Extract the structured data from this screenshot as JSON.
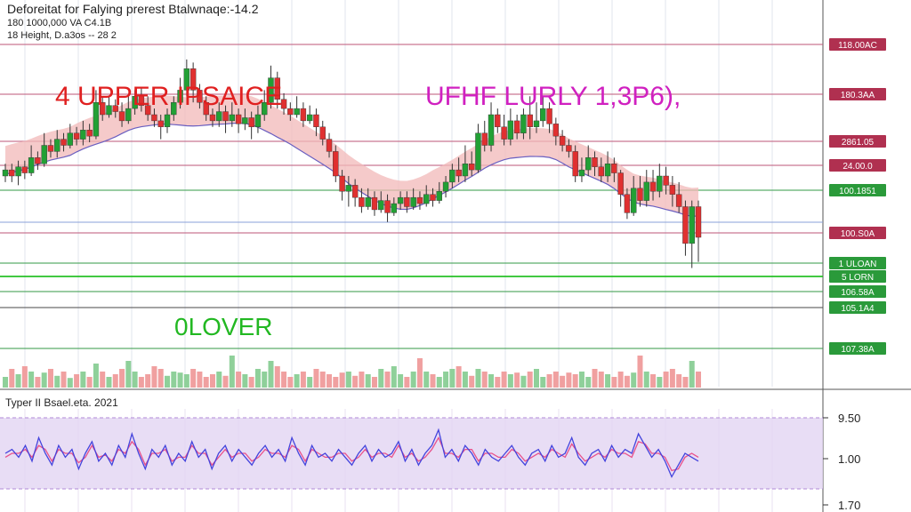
{
  "header": {
    "line1": "Deforeitat for Falying prerest Btalwnaqe:-14.2",
    "line2": "180 1000,000 VA C4.1B",
    "line3": "18 Height, D.a3os -- 28 2"
  },
  "annotations": {
    "upper": "4 UPPER IPSAICE",
    "lurly": "UFHF LURLY 1,3P6),",
    "olover": "0LOVER"
  },
  "oscillator": {
    "title": "Typer II Bsael.eta. 2021",
    "ticks": [
      "9.50",
      "1.00",
      "1.70"
    ]
  },
  "colors": {
    "up": "#22a035",
    "down": "#e03030",
    "band_fill": "#f2b8b8",
    "band_line": "#6a5fc0",
    "osc_bg": "#e2d4f2",
    "osc_line_blue": "#4444dd",
    "osc_line_pink": "#e8508a"
  },
  "chart_data": {
    "type": "candlestick",
    "price_labels": [
      {
        "text": "118.00AC",
        "color": "#b03050"
      },
      {
        "text": "180.3AA",
        "color": "#b03050"
      },
      {
        "text": "2861.05",
        "color": "#b03050"
      },
      {
        "text": "24.00.0",
        "color": "#b03050"
      },
      {
        "text": "100.1851",
        "color": "#2a9a3a"
      },
      {
        "text": "100.S0A",
        "color": "#b03050"
      },
      {
        "text": "1 ULOAN",
        "color": "#2a9a3a"
      },
      {
        "text": "5 LORN",
        "color": "#2a9a3a"
      },
      {
        "text": "106.58A",
        "color": "#2a9a3a"
      },
      {
        "text": "105.1A4",
        "color": "#2a9a3a"
      },
      {
        "text": "107.38A",
        "color": "#2a9a3a"
      }
    ],
    "candles": [
      [
        0.6,
        0.62,
        0.58,
        0.64
      ],
      [
        0.62,
        0.6,
        0.58,
        0.64
      ],
      [
        0.6,
        0.63,
        0.57,
        0.65
      ],
      [
        0.63,
        0.61,
        0.59,
        0.65
      ],
      [
        0.61,
        0.66,
        0.6,
        0.7
      ],
      [
        0.66,
        0.64,
        0.62,
        0.68
      ],
      [
        0.64,
        0.7,
        0.63,
        0.74
      ],
      [
        0.7,
        0.68,
        0.66,
        0.72
      ],
      [
        0.68,
        0.72,
        0.66,
        0.75
      ],
      [
        0.72,
        0.7,
        0.68,
        0.74
      ],
      [
        0.7,
        0.74,
        0.69,
        0.77
      ],
      [
        0.74,
        0.72,
        0.7,
        0.76
      ],
      [
        0.72,
        0.75,
        0.7,
        0.78
      ],
      [
        0.75,
        0.73,
        0.71,
        0.77
      ],
      [
        0.73,
        0.84,
        0.72,
        0.88
      ],
      [
        0.84,
        0.8,
        0.78,
        0.86
      ],
      [
        0.8,
        0.83,
        0.79,
        0.86
      ],
      [
        0.83,
        0.81,
        0.79,
        0.85
      ],
      [
        0.81,
        0.78,
        0.76,
        0.84
      ],
      [
        0.78,
        0.82,
        0.77,
        0.86
      ],
      [
        0.82,
        0.86,
        0.8,
        0.88
      ],
      [
        0.86,
        0.83,
        0.81,
        0.89
      ],
      [
        0.83,
        0.8,
        0.78,
        0.86
      ],
      [
        0.8,
        0.78,
        0.76,
        0.82
      ],
      [
        0.78,
        0.76,
        0.72,
        0.8
      ],
      [
        0.76,
        0.8,
        0.74,
        0.82
      ],
      [
        0.8,
        0.84,
        0.78,
        0.86
      ],
      [
        0.84,
        0.88,
        0.82,
        0.92
      ],
      [
        0.88,
        0.95,
        0.86,
        0.98
      ],
      [
        0.95,
        0.88,
        0.84,
        0.97
      ],
      [
        0.88,
        0.84,
        0.82,
        0.9
      ],
      [
        0.84,
        0.8,
        0.78,
        0.86
      ],
      [
        0.8,
        0.78,
        0.76,
        0.82
      ],
      [
        0.78,
        0.81,
        0.76,
        0.84
      ],
      [
        0.81,
        0.78,
        0.74,
        0.83
      ],
      [
        0.78,
        0.8,
        0.76,
        0.84
      ],
      [
        0.8,
        0.77,
        0.74,
        0.82
      ],
      [
        0.77,
        0.79,
        0.75,
        0.82
      ],
      [
        0.79,
        0.76,
        0.72,
        0.81
      ],
      [
        0.76,
        0.8,
        0.74,
        0.83
      ],
      [
        0.8,
        0.84,
        0.78,
        0.88
      ],
      [
        0.84,
        0.92,
        0.82,
        0.96
      ],
      [
        0.92,
        0.85,
        0.82,
        0.94
      ],
      [
        0.85,
        0.82,
        0.8,
        0.87
      ],
      [
        0.82,
        0.8,
        0.78,
        0.84
      ],
      [
        0.8,
        0.82,
        0.79,
        0.86
      ],
      [
        0.82,
        0.78,
        0.76,
        0.84
      ],
      [
        0.78,
        0.8,
        0.77,
        0.83
      ],
      [
        0.8,
        0.76,
        0.73,
        0.82
      ],
      [
        0.76,
        0.72,
        0.7,
        0.78
      ],
      [
        0.72,
        0.68,
        0.66,
        0.74
      ],
      [
        0.68,
        0.6,
        0.58,
        0.7
      ],
      [
        0.6,
        0.55,
        0.52,
        0.62
      ],
      [
        0.55,
        0.57,
        0.5,
        0.6
      ],
      [
        0.57,
        0.53,
        0.5,
        0.59
      ],
      [
        0.53,
        0.5,
        0.48,
        0.56
      ],
      [
        0.5,
        0.53,
        0.49,
        0.56
      ],
      [
        0.53,
        0.49,
        0.47,
        0.55
      ],
      [
        0.49,
        0.52,
        0.48,
        0.55
      ],
      [
        0.52,
        0.48,
        0.45,
        0.54
      ],
      [
        0.48,
        0.51,
        0.47,
        0.53
      ],
      [
        0.51,
        0.53,
        0.49,
        0.55
      ],
      [
        0.53,
        0.5,
        0.48,
        0.55
      ],
      [
        0.5,
        0.53,
        0.49,
        0.56
      ],
      [
        0.53,
        0.51,
        0.49,
        0.55
      ],
      [
        0.51,
        0.54,
        0.5,
        0.57
      ],
      [
        0.54,
        0.52,
        0.5,
        0.56
      ],
      [
        0.52,
        0.55,
        0.51,
        0.58
      ],
      [
        0.55,
        0.58,
        0.53,
        0.6
      ],
      [
        0.58,
        0.62,
        0.56,
        0.64
      ],
      [
        0.62,
        0.6,
        0.58,
        0.66
      ],
      [
        0.6,
        0.64,
        0.58,
        0.7
      ],
      [
        0.64,
        0.62,
        0.6,
        0.68
      ],
      [
        0.62,
        0.74,
        0.61,
        0.77
      ],
      [
        0.74,
        0.7,
        0.68,
        0.78
      ],
      [
        0.7,
        0.8,
        0.68,
        0.84
      ],
      [
        0.8,
        0.76,
        0.74,
        0.82
      ],
      [
        0.76,
        0.72,
        0.7,
        0.8
      ],
      [
        0.72,
        0.78,
        0.7,
        0.82
      ],
      [
        0.78,
        0.74,
        0.72,
        0.8
      ],
      [
        0.74,
        0.8,
        0.72,
        0.82
      ],
      [
        0.8,
        0.76,
        0.72,
        0.86
      ],
      [
        0.76,
        0.78,
        0.74,
        0.84
      ],
      [
        0.78,
        0.82,
        0.76,
        0.86
      ],
      [
        0.82,
        0.77,
        0.74,
        0.84
      ],
      [
        0.77,
        0.73,
        0.7,
        0.79
      ],
      [
        0.73,
        0.7,
        0.68,
        0.75
      ],
      [
        0.7,
        0.68,
        0.66,
        0.72
      ],
      [
        0.68,
        0.6,
        0.58,
        0.7
      ],
      [
        0.6,
        0.62,
        0.58,
        0.66
      ],
      [
        0.62,
        0.66,
        0.6,
        0.7
      ],
      [
        0.66,
        0.63,
        0.6,
        0.68
      ],
      [
        0.63,
        0.6,
        0.58,
        0.66
      ],
      [
        0.6,
        0.64,
        0.58,
        0.68
      ],
      [
        0.64,
        0.61,
        0.58,
        0.66
      ],
      [
        0.61,
        0.54,
        0.5,
        0.62
      ],
      [
        0.54,
        0.48,
        0.46,
        0.56
      ],
      [
        0.48,
        0.56,
        0.47,
        0.6
      ],
      [
        0.56,
        0.52,
        0.5,
        0.6
      ],
      [
        0.52,
        0.58,
        0.5,
        0.62
      ],
      [
        0.58,
        0.55,
        0.52,
        0.62
      ],
      [
        0.55,
        0.6,
        0.53,
        0.64
      ],
      [
        0.6,
        0.57,
        0.54,
        0.63
      ],
      [
        0.57,
        0.54,
        0.5,
        0.6
      ],
      [
        0.54,
        0.5,
        0.48,
        0.58
      ],
      [
        0.5,
        0.38,
        0.34,
        0.52
      ],
      [
        0.38,
        0.5,
        0.3,
        0.52
      ],
      [
        0.5,
        0.4,
        0.32,
        0.52
      ]
    ],
    "volume": [
      0.2,
      0.35,
      0.25,
      0.4,
      0.3,
      0.2,
      0.28,
      0.35,
      0.22,
      0.3,
      0.18,
      0.25,
      0.3,
      0.2,
      0.45,
      0.3,
      0.2,
      0.25,
      0.35,
      0.5,
      0.3,
      0.2,
      0.25,
      0.4,
      0.35,
      0.22,
      0.3,
      0.28,
      0.25,
      0.35,
      0.3,
      0.2,
      0.25,
      0.3,
      0.22,
      0.6,
      0.3,
      0.25,
      0.2,
      0.35,
      0.3,
      0.5,
      0.4,
      0.3,
      0.2,
      0.25,
      0.3,
      0.2,
      0.35,
      0.3,
      0.25,
      0.2,
      0.28,
      0.3,
      0.22,
      0.3,
      0.25,
      0.2,
      0.35,
      0.3,
      0.4,
      0.25,
      0.2,
      0.3,
      0.55,
      0.3,
      0.25,
      0.2,
      0.3,
      0.35,
      0.4,
      0.3,
      0.22,
      0.35,
      0.3,
      0.25,
      0.2,
      0.3,
      0.25,
      0.28,
      0.22,
      0.3,
      0.35,
      0.2,
      0.25,
      0.3,
      0.22,
      0.28,
      0.25,
      0.3,
      0.2,
      0.35,
      0.3,
      0.25,
      0.2,
      0.3,
      0.22,
      0.28,
      0.6,
      0.3,
      0.25,
      0.2,
      0.3,
      0.35,
      0.25,
      0.2,
      0.5,
      0.3,
      0.45
    ],
    "oscillator_series": {
      "blue": [
        0.5,
        0.55,
        0.45,
        0.6,
        0.4,
        0.7,
        0.5,
        0.35,
        0.6,
        0.45,
        0.55,
        0.3,
        0.5,
        0.65,
        0.4,
        0.5,
        0.35,
        0.6,
        0.45,
        0.75,
        0.5,
        0.3,
        0.55,
        0.45,
        0.6,
        0.35,
        0.5,
        0.4,
        0.65,
        0.45,
        0.55,
        0.3,
        0.5,
        0.6,
        0.4,
        0.55,
        0.45,
        0.35,
        0.5,
        0.6,
        0.45,
        0.55,
        0.4,
        0.7,
        0.5,
        0.35,
        0.6,
        0.45,
        0.5,
        0.4,
        0.55,
        0.45,
        0.35,
        0.5,
        0.6,
        0.4,
        0.55,
        0.45,
        0.5,
        0.65,
        0.4,
        0.55,
        0.35,
        0.5,
        0.6,
        0.8,
        0.45,
        0.55,
        0.4,
        0.6,
        0.5,
        0.35,
        0.55,
        0.45,
        0.4,
        0.5,
        0.6,
        0.45,
        0.35,
        0.5,
        0.55,
        0.4,
        0.6,
        0.45,
        0.5,
        0.7,
        0.45,
        0.35,
        0.5,
        0.55,
        0.4,
        0.6,
        0.45,
        0.55,
        0.5,
        0.75,
        0.6,
        0.45,
        0.55,
        0.4,
        0.2,
        0.35,
        0.5,
        0.45,
        0.4
      ],
      "pink": [
        0.45,
        0.5,
        0.5,
        0.55,
        0.45,
        0.6,
        0.55,
        0.4,
        0.55,
        0.5,
        0.5,
        0.38,
        0.45,
        0.6,
        0.45,
        0.48,
        0.4,
        0.55,
        0.5,
        0.65,
        0.55,
        0.35,
        0.5,
        0.5,
        0.55,
        0.4,
        0.45,
        0.45,
        0.6,
        0.5,
        0.5,
        0.35,
        0.45,
        0.55,
        0.45,
        0.5,
        0.5,
        0.4,
        0.45,
        0.55,
        0.5,
        0.5,
        0.45,
        0.6,
        0.55,
        0.4,
        0.55,
        0.5,
        0.45,
        0.45,
        0.5,
        0.5,
        0.4,
        0.45,
        0.55,
        0.45,
        0.5,
        0.5,
        0.45,
        0.6,
        0.45,
        0.5,
        0.4,
        0.45,
        0.55,
        0.7,
        0.5,
        0.5,
        0.45,
        0.55,
        0.55,
        0.4,
        0.5,
        0.5,
        0.45,
        0.45,
        0.55,
        0.5,
        0.4,
        0.45,
        0.5,
        0.45,
        0.55,
        0.5,
        0.45,
        0.62,
        0.5,
        0.4,
        0.45,
        0.5,
        0.45,
        0.55,
        0.5,
        0.5,
        0.45,
        0.65,
        0.62,
        0.5,
        0.5,
        0.45,
        0.28,
        0.3,
        0.45,
        0.5,
        0.45
      ]
    }
  }
}
